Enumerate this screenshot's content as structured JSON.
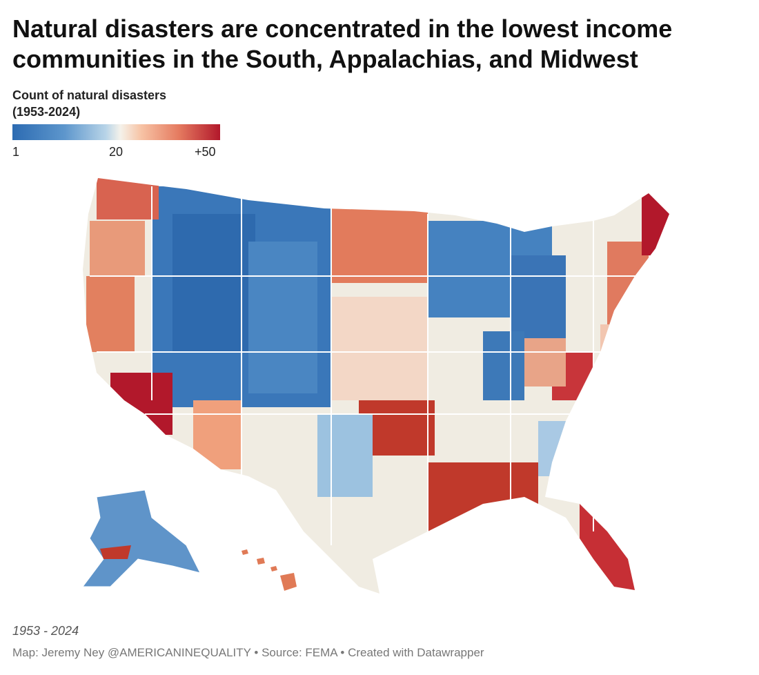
{
  "title": "Natural disasters are concentrated in the lowest income communities in the South, Appalachias, and Midwest",
  "legend": {
    "title_line1": "Count of natural disasters",
    "title_line2": "(1953-2024)",
    "ticks": [
      "1",
      "20",
      "+50"
    ],
    "colors": {
      "low": "#2c6bb2",
      "mid": "#f5f2ea",
      "high": "#b2182b"
    }
  },
  "note": "1953 - 2024",
  "footer": "Map: Jeremy Ney @AMERICANINEQUALITY • Source: FEMA • Created with Datawrapper"
}
